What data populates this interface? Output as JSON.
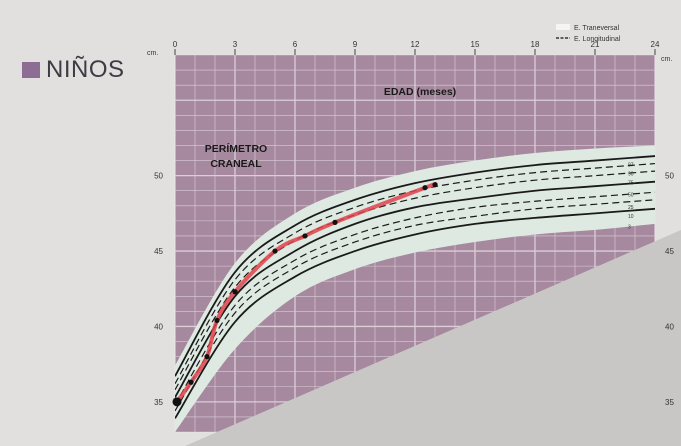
{
  "brand": {
    "label": "NIÑOS",
    "swatch_color": "#8e6d95"
  },
  "colors": {
    "grid_bg": "#a7899f",
    "grid_line": "#ece6ea",
    "band": "#dde9e1",
    "child": "#e0424a",
    "lower_wedge": "#c9c7c5"
  },
  "chart_data": {
    "type": "line",
    "title": "PERÍMETRO CRANEAL",
    "xlabel": "EDAD (meses)",
    "ylabel": "cm.",
    "xlim": [
      0,
      24
    ],
    "ylim": [
      33,
      58
    ],
    "x_ticks": [
      0,
      3,
      6,
      9,
      12,
      15,
      18,
      21,
      24
    ],
    "y_ticks": [
      35,
      40,
      45,
      50
    ],
    "legend": [
      {
        "name": "E. Traneversal",
        "style": "band"
      },
      {
        "name": "E. Longitudinal",
        "style": "dashed"
      }
    ],
    "legend_position": "top-right",
    "ages": [
      0,
      3,
      6,
      9,
      12,
      15,
      18,
      21,
      24
    ],
    "band": {
      "upper": [
        37.4,
        44.2,
        47.5,
        49.2,
        50.3,
        51.0,
        51.5,
        51.8,
        52.0
      ],
      "lower": [
        33.0,
        38.5,
        42.0,
        43.8,
        44.9,
        45.6,
        46.1,
        46.4,
        46.8
      ]
    },
    "percentiles": [
      {
        "name": "97",
        "style": "solid",
        "values": [
          36.7,
          43.6,
          46.7,
          48.4,
          49.5,
          50.2,
          50.7,
          51.0,
          51.3
        ]
      },
      {
        "name": "90",
        "style": "dashed",
        "values": [
          36.2,
          43.1,
          46.2,
          47.9,
          49.0,
          49.7,
          50.2,
          50.5,
          50.8
        ]
      },
      {
        "name": "75",
        "style": "dashed",
        "values": [
          35.8,
          42.6,
          45.7,
          47.4,
          48.5,
          49.2,
          49.7,
          50.0,
          50.3
        ]
      },
      {
        "name": "50",
        "style": "solid",
        "values": [
          35.3,
          42.0,
          45.0,
          46.8,
          47.9,
          48.5,
          49.0,
          49.3,
          49.6
        ]
      },
      {
        "name": "25",
        "style": "dashed",
        "values": [
          34.8,
          41.4,
          44.4,
          46.1,
          47.2,
          47.9,
          48.3,
          48.6,
          48.9
        ]
      },
      {
        "name": "10",
        "style": "dashed",
        "values": [
          34.4,
          40.9,
          43.9,
          45.6,
          46.7,
          47.3,
          47.8,
          48.1,
          48.4
        ]
      },
      {
        "name": "3",
        "style": "solid",
        "values": [
          33.9,
          40.3,
          43.3,
          45.0,
          46.1,
          46.8,
          47.2,
          47.5,
          47.8
        ]
      }
    ],
    "child_measurements": {
      "x": [
        0.1,
        0.8,
        1.6,
        2.1,
        3.0,
        5.0,
        6.5,
        8.0,
        12.5,
        13.0
      ],
      "y": [
        35.0,
        36.3,
        38.0,
        40.4,
        42.3,
        45.0,
        46.0,
        46.9,
        49.2,
        49.4
      ]
    }
  }
}
